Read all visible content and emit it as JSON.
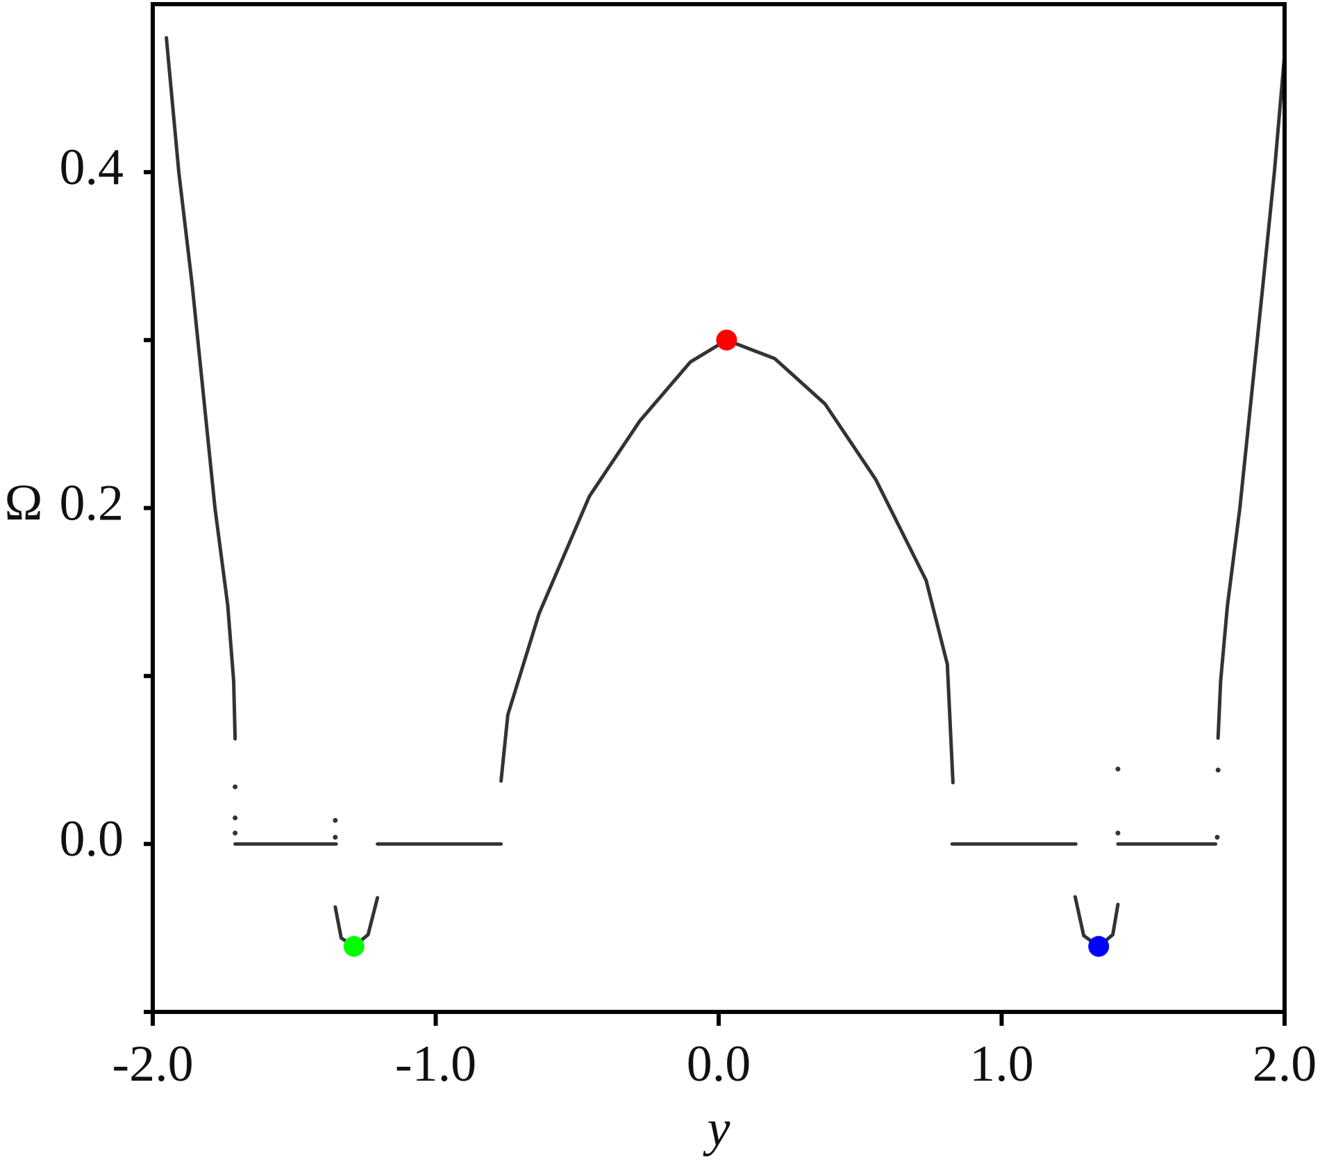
{
  "chart_data": {
    "type": "line",
    "x_label": "y",
    "y_label": "Ω",
    "xlim": [
      -2,
      2
    ],
    "xticks": [
      {
        "value": -2,
        "label": "-2.0"
      },
      {
        "value": -1,
        "label": "-1.0"
      },
      {
        "value": 0,
        "label": "0.0"
      },
      {
        "value": 1,
        "label": "1.0"
      },
      {
        "value": 2,
        "label": "2.0"
      }
    ],
    "ylim": [
      -0.1,
      0.5
    ],
    "yticks": [
      {
        "value": 0,
        "label": "0.0"
      },
      0.2,
      0.4
    ],
    "yminor_ticks": [
      -0.1,
      0.1,
      0.3
    ],
    "grid": false,
    "series": [
      {
        "mode": "line",
        "color": "#333333",
        "x": [
          -1.952,
          -1.908,
          -1.86,
          -1.78,
          -1.735,
          -1.714,
          -1.709
        ],
        "values": [
          0.48,
          0.4,
          0.332,
          0.2,
          0.142,
          0.097,
          0.0626
        ]
      },
      {
        "mode": "line",
        "color": "#333333",
        "x": [
          2.0,
          1.964,
          1.923,
          1.842,
          1.798,
          1.774,
          1.765
        ],
        "values": [
          0.47,
          0.4,
          0.332,
          0.2,
          0.142,
          0.097,
          0.063
        ]
      },
      {
        "mode": "line",
        "color": "#333333",
        "x": [
          -0.769,
          -0.745,
          -0.635,
          -0.457,
          -0.278,
          -0.1,
          0.028,
          0.198,
          0.376,
          0.555,
          0.733,
          0.808,
          0.828
        ],
        "values": [
          0.0375,
          0.077,
          0.137,
          0.207,
          0.252,
          0.287,
          0.3,
          0.289,
          0.262,
          0.217,
          0.157,
          0.107,
          0.0365
        ]
      },
      {
        "mode": "line",
        "color": "#333333",
        "x": [
          -1.709,
          -1.352
        ],
        "values": [
          0,
          0
        ]
      },
      {
        "mode": "line",
        "color": "#333333",
        "x": [
          -1.206,
          -0.769
        ],
        "values": [
          0,
          0
        ]
      },
      {
        "mode": "line",
        "color": "#333333",
        "x": [
          0.825,
          1.262
        ],
        "values": [
          0,
          0
        ]
      },
      {
        "mode": "line",
        "color": "#333333",
        "x": [
          1.411,
          1.756
        ],
        "values": [
          0,
          0
        ]
      },
      {
        "mode": "line",
        "color": "#333333",
        "x": [
          -1.355,
          -1.334,
          -1.289,
          -1.239,
          -1.206
        ],
        "values": [
          -0.0375,
          -0.056,
          -0.061,
          -0.054,
          -0.032
        ]
      },
      {
        "mode": "line",
        "color": "#333333",
        "x": [
          1.26,
          1.29,
          1.343,
          1.393,
          1.411
        ],
        "values": [
          -0.0315,
          -0.0546,
          -0.061,
          -0.054,
          -0.036
        ]
      },
      {
        "mode": "markers",
        "color": "#333333",
        "x": [
          -1.709,
          -1.709,
          -1.709,
          -1.355,
          -1.355,
          1.411,
          1.411,
          1.765,
          1.762
        ],
        "values": [
          0.034,
          0.0155,
          0.0065,
          0.014,
          0.004,
          0.0446,
          0.0065,
          0.044,
          0.004
        ]
      },
      {
        "mode": "highlight",
        "color": "#ff0000",
        "x": [
          0.028
        ],
        "values": [
          0.3
        ]
      },
      {
        "mode": "highlight",
        "color": "#00ff00",
        "x": [
          -1.289
        ],
        "values": [
          -0.061
        ]
      },
      {
        "mode": "highlight",
        "color": "#0000ff",
        "x": [
          1.343
        ],
        "values": [
          -0.061
        ]
      }
    ]
  }
}
